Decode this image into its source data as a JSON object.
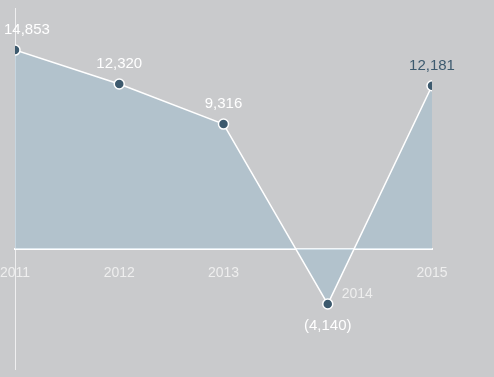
{
  "chart_data": {
    "type": "line",
    "categories": [
      "2011",
      "2012",
      "2013",
      "2014",
      "2015"
    ],
    "values": [
      14853,
      12320,
      9316,
      -4140,
      12181
    ],
    "value_labels": [
      "14,853",
      "12,320",
      "9,316",
      "(4,140)",
      "12,181"
    ],
    "color": "#ffffff",
    "marker": "circle",
    "ylim": [
      -9000,
      18000
    ],
    "yticks": [
      0
    ],
    "grid": false,
    "data_labels": true,
    "tick_labels": "x"
  }
}
